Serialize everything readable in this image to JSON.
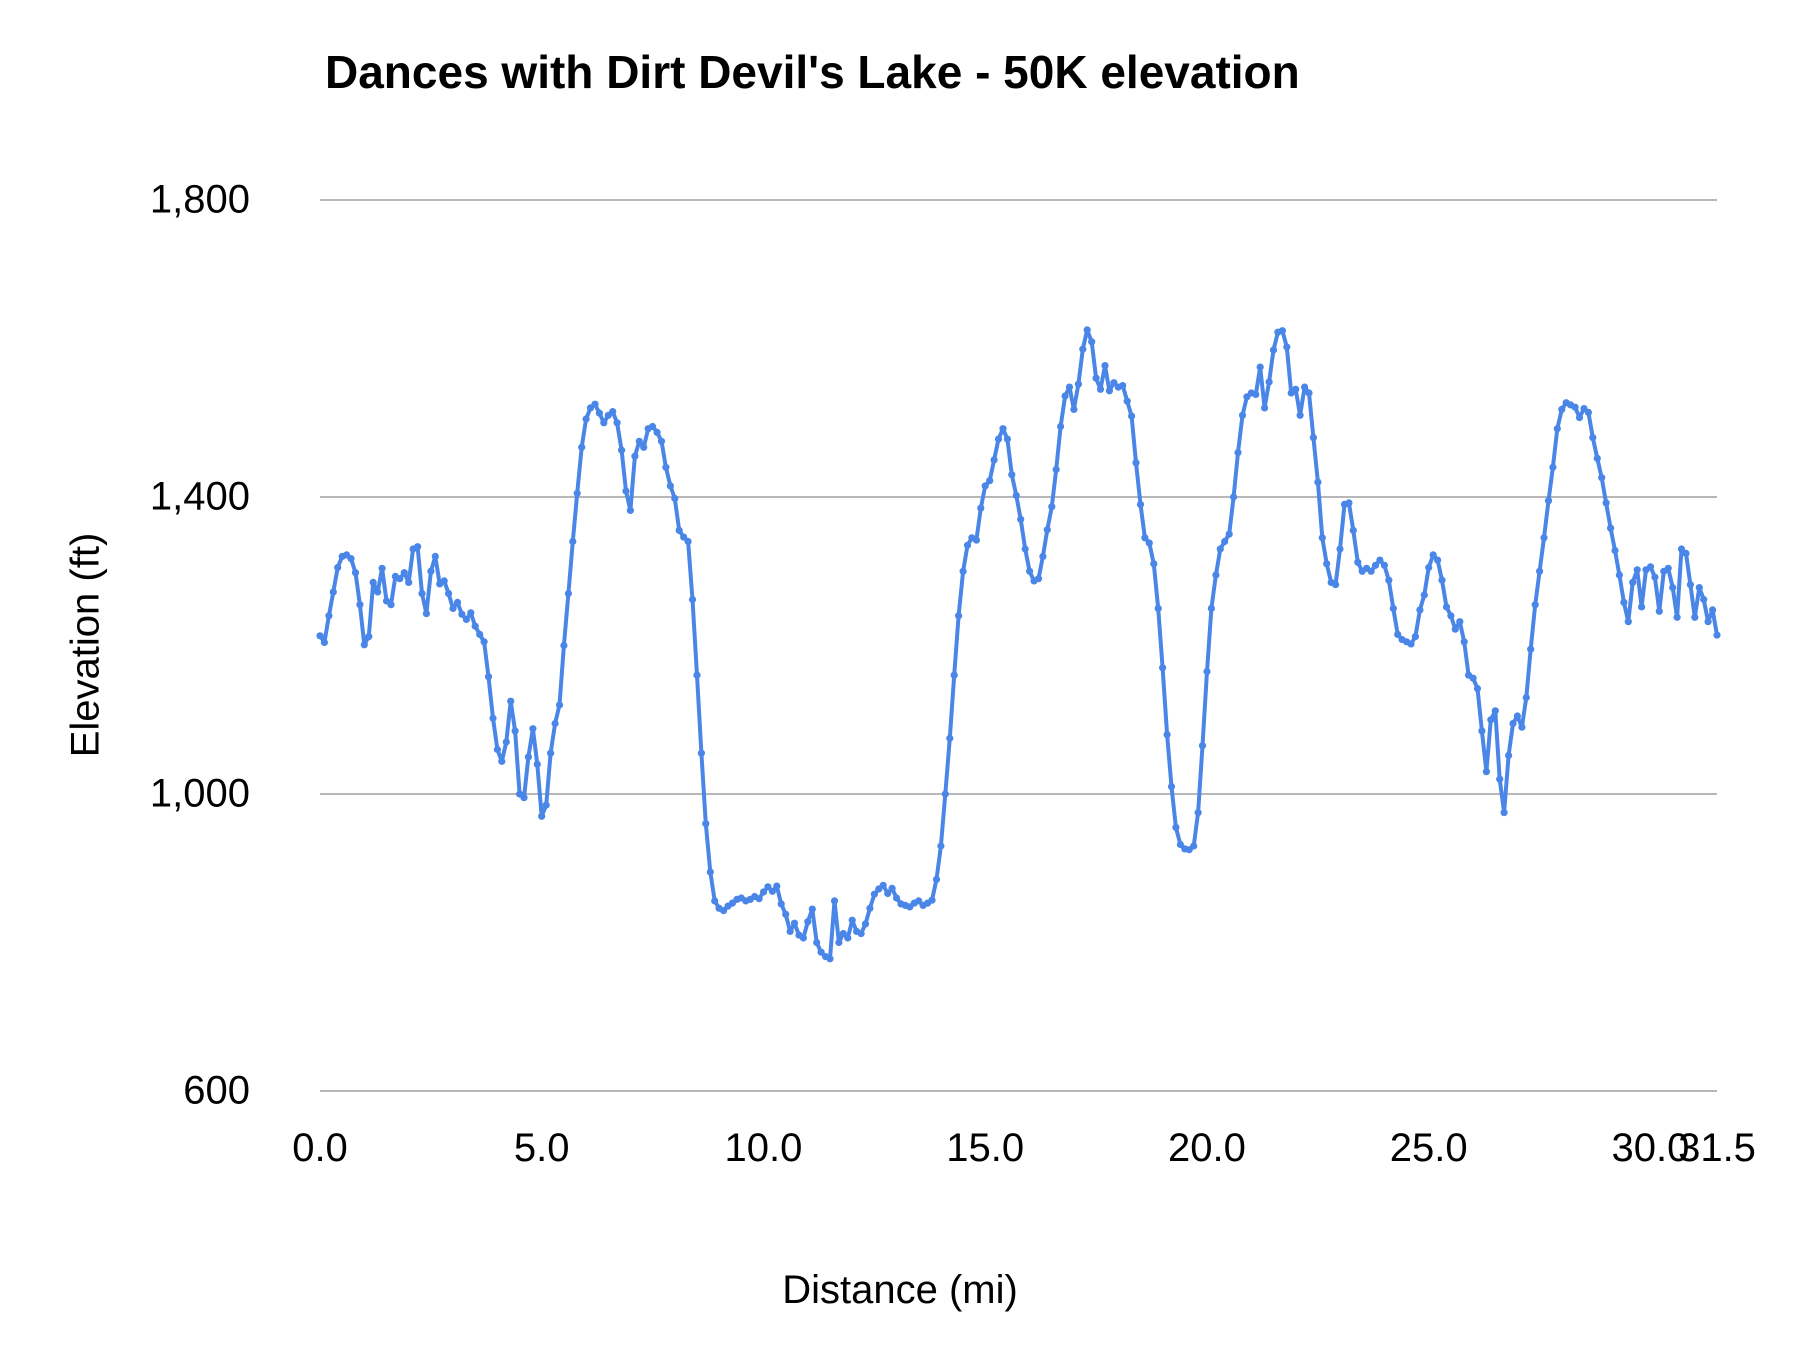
{
  "chart_data": {
    "type": "line",
    "title": "Dances with Dirt Devil's Lake - 50K elevation",
    "xlabel": "Distance (mi)",
    "ylabel": "Elevation (ft)",
    "xlim": [
      0,
      31.5
    ],
    "ylim": [
      600,
      1800
    ],
    "grid": "horizontal",
    "legend": "none",
    "gridline_color": "#b7b7b7",
    "x_ticks": [
      {
        "value": 0.0,
        "label": "0.0"
      },
      {
        "value": 5.0,
        "label": "5.0"
      },
      {
        "value": 10.0,
        "label": "10.0"
      },
      {
        "value": 15.0,
        "label": "15.0"
      },
      {
        "value": 20.0,
        "label": "20.0"
      },
      {
        "value": 25.0,
        "label": "25.0"
      },
      {
        "value": 30.0,
        "label": "30.0"
      },
      {
        "value": 31.5,
        "label": "31.5"
      }
    ],
    "y_ticks": [
      {
        "value": 600,
        "label": "600"
      },
      {
        "value": 1000,
        "label": "1,000"
      },
      {
        "value": 1400,
        "label": "1,400"
      },
      {
        "value": 1800,
        "label": "1,800"
      }
    ],
    "series": [
      {
        "name": "Elevation",
        "color": "#4a86e8",
        "marker": "circle",
        "x_start": 0.0,
        "x_step": 0.1,
        "elevations_ft": [
          1213,
          1204,
          1240,
          1272,
          1305,
          1320,
          1322,
          1317,
          1298,
          1255,
          1201,
          1212,
          1285,
          1272,
          1304,
          1260,
          1255,
          1293,
          1290,
          1298,
          1285,
          1330,
          1333,
          1270,
          1243,
          1300,
          1320,
          1283,
          1287,
          1270,
          1250,
          1258,
          1242,
          1235,
          1244,
          1226,
          1215,
          1205,
          1158,
          1102,
          1060,
          1044,
          1070,
          1125,
          1085,
          1000,
          995,
          1050,
          1088,
          1040,
          970,
          985,
          1055,
          1095,
          1120,
          1200,
          1270,
          1340,
          1405,
          1467,
          1505,
          1520,
          1525,
          1513,
          1500,
          1510,
          1515,
          1500,
          1463,
          1408,
          1382,
          1455,
          1475,
          1467,
          1492,
          1495,
          1487,
          1475,
          1440,
          1415,
          1398,
          1355,
          1346,
          1340,
          1262,
          1160,
          1055,
          960,
          895,
          856,
          846,
          843,
          849,
          853,
          858,
          860,
          856,
          858,
          862,
          859,
          868,
          875,
          869,
          876,
          852,
          838,
          815,
          826,
          810,
          806,
          828,
          845,
          800,
          787,
          781,
          778,
          856,
          800,
          812,
          806,
          830,
          815,
          812,
          825,
          846,
          865,
          872,
          877,
          866,
          873,
          860,
          852,
          850,
          848,
          853,
          856,
          850,
          853,
          857,
          885,
          930,
          1000,
          1075,
          1160,
          1240,
          1300,
          1335,
          1345,
          1342,
          1385,
          1415,
          1422,
          1450,
          1478,
          1492,
          1478,
          1430,
          1402,
          1370,
          1330,
          1300,
          1287,
          1290,
          1320,
          1356,
          1387,
          1437,
          1495,
          1536,
          1548,
          1518,
          1552,
          1599,
          1625,
          1609,
          1560,
          1545,
          1577,
          1543,
          1554,
          1548,
          1550,
          1529,
          1509,
          1446,
          1390,
          1345,
          1338,
          1310,
          1250,
          1170,
          1080,
          1010,
          955,
          932,
          926,
          925,
          930,
          975,
          1065,
          1165,
          1250,
          1295,
          1330,
          1340,
          1350,
          1400,
          1460,
          1510,
          1535,
          1540,
          1538,
          1575,
          1520,
          1555,
          1598,
          1622,
          1624,
          1602,
          1540,
          1545,
          1510,
          1548,
          1540,
          1480,
          1420,
          1345,
          1310,
          1285,
          1282,
          1330,
          1390,
          1392,
          1355,
          1312,
          1300,
          1304,
          1300,
          1308,
          1315,
          1308,
          1288,
          1250,
          1215,
          1208,
          1205,
          1202,
          1212,
          1248,
          1268,
          1305,
          1322,
          1315,
          1288,
          1252,
          1240,
          1222,
          1232,
          1205,
          1160,
          1156,
          1142,
          1085,
          1030,
          1100,
          1112,
          1020,
          975,
          1052,
          1095,
          1105,
          1090,
          1130,
          1195,
          1255,
          1300,
          1345,
          1395,
          1440,
          1492,
          1518,
          1527,
          1524,
          1521,
          1507,
          1519,
          1514,
          1480,
          1452,
          1426,
          1392,
          1358,
          1328,
          1295,
          1258,
          1232,
          1285,
          1302,
          1252,
          1302,
          1306,
          1292,
          1246,
          1300,
          1304,
          1278,
          1238,
          1330,
          1324,
          1282,
          1238,
          1278,
          1262,
          1232,
          1248,
          1214
        ]
      }
    ]
  }
}
